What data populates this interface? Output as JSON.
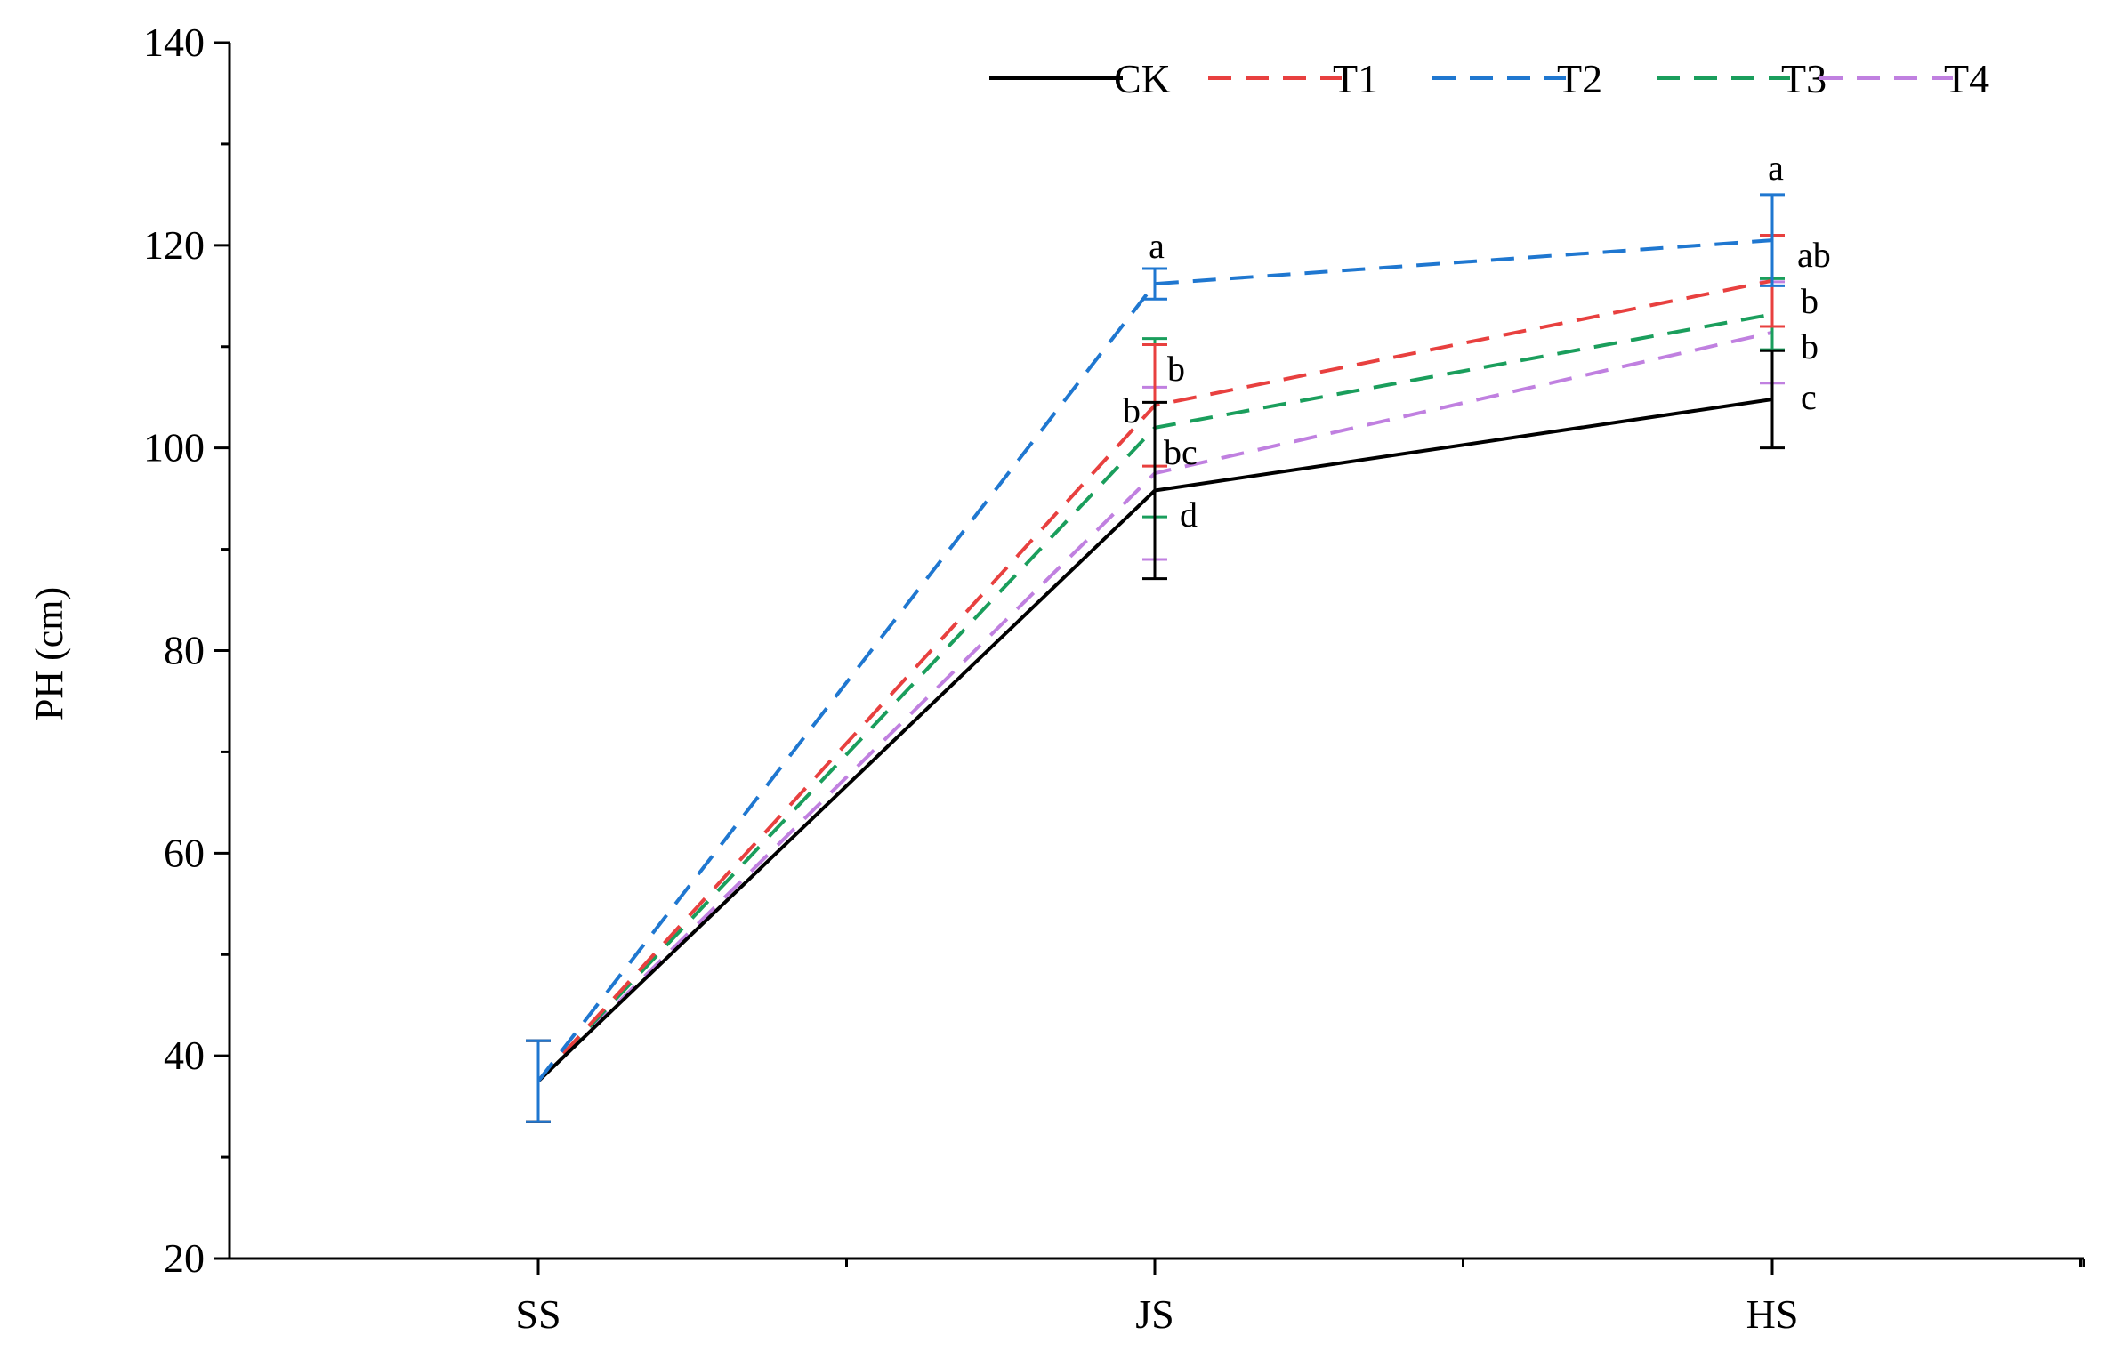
{
  "chart_data": {
    "type": "line",
    "title": "",
    "xlabel": "",
    "ylabel": "PH (cm)",
    "ylim": [
      20,
      140
    ],
    "yticks": [
      20,
      40,
      60,
      80,
      100,
      120,
      140
    ],
    "categories": [
      "SS",
      "JS",
      "HS"
    ],
    "grid": false,
    "legend_position": "top-right",
    "series": [
      {
        "name": "CK",
        "color": "#000000",
        "dash": "solid",
        "values": [
          37.5,
          95.8,
          104.8
        ],
        "errors": [
          4,
          8.7,
          4.8
        ],
        "sig": [
          "",
          "d",
          "c"
        ]
      },
      {
        "name": "T1",
        "color": "#e8403f",
        "dash": "dashed",
        "values": [
          37.5,
          104.2,
          116.5
        ],
        "errors": [
          4,
          6,
          4.5
        ],
        "sig": [
          "",
          "b",
          "ab"
        ]
      },
      {
        "name": "T2",
        "color": "#1f77d0",
        "dash": "dashed",
        "values": [
          37.5,
          116.2,
          120.5
        ],
        "errors": [
          4,
          1.5,
          4.5
        ],
        "sig": [
          "",
          "a",
          "a"
        ]
      },
      {
        "name": "T3",
        "color": "#1a9e5c",
        "dash": "dashed",
        "values": [
          37.5,
          102.0,
          113.2
        ],
        "errors": [
          4,
          8.8,
          3.5
        ],
        "sig": [
          "",
          "b",
          "b"
        ]
      },
      {
        "name": "T4",
        "color": "#c080e0",
        "dash": "dashed",
        "values": [
          37.5,
          97.5,
          111.4
        ],
        "errors": [
          4,
          8.5,
          5
        ],
        "sig": [
          "",
          "bc",
          "b"
        ]
      }
    ]
  }
}
